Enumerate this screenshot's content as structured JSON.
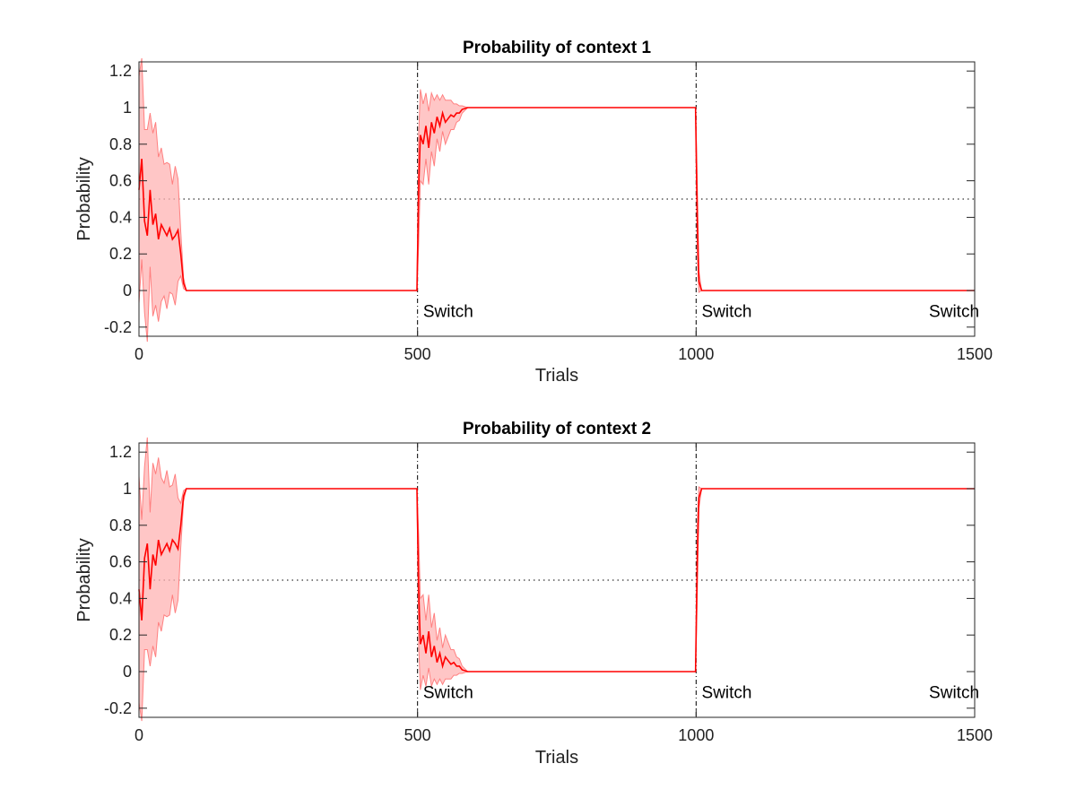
{
  "chart_data": [
    {
      "type": "line",
      "title": "Probability of context 1",
      "xlabel": "Trials",
      "ylabel": "Probability",
      "xlim": [
        0,
        1500
      ],
      "ylim": [
        -0.25,
        1.25
      ],
      "xticks": [
        "0",
        "500",
        "1000",
        "1500"
      ],
      "yticks": [
        "-0.2",
        "0",
        "0.2",
        "0.4",
        "0.6",
        "0.8",
        "1",
        "1.2"
      ],
      "grid": false,
      "reference_line_y": 0.5,
      "switch_x": [
        500,
        1000
      ],
      "annotations": [
        {
          "text": "Switch",
          "x": 510,
          "y": -0.11
        },
        {
          "text": "Switch",
          "x": 1010,
          "y": -0.11
        },
        {
          "text": "Switch",
          "x": 1418,
          "y": -0.11
        }
      ],
      "mean_color": "#ff0000",
      "band_color": "#ffb3b3",
      "series": [
        {
          "x": [
            0,
            5,
            10,
            15,
            20,
            25,
            30,
            35,
            40,
            45,
            50,
            55,
            60,
            65,
            70,
            75,
            80,
            85,
            100,
            200,
            300,
            400,
            499,
            502,
            505,
            510,
            515,
            520,
            525,
            530,
            535,
            540,
            545,
            550,
            555,
            560,
            565,
            570,
            575,
            580,
            590,
            600,
            700,
            800,
            900,
            999,
            1002,
            1005,
            1010,
            1020,
            1100,
            1200,
            1300,
            1400,
            1500
          ],
          "values": [
            0.55,
            0.72,
            0.38,
            0.3,
            0.55,
            0.36,
            0.42,
            0.28,
            0.36,
            0.33,
            0.3,
            0.34,
            0.28,
            0.3,
            0.33,
            0.2,
            0.04,
            0.0,
            0.0,
            0.0,
            0.0,
            0.0,
            0.0,
            0.55,
            0.85,
            0.8,
            0.9,
            0.78,
            0.92,
            0.86,
            0.95,
            0.9,
            0.97,
            0.92,
            0.94,
            0.96,
            0.95,
            0.97,
            0.97,
            0.99,
            1.0,
            1.0,
            1.0,
            1.0,
            1.0,
            1.0,
            0.4,
            0.05,
            0.0,
            0.0,
            0.0,
            0.0,
            0.0,
            0.0,
            0.0
          ],
          "band": [
            0.62,
            0.55,
            0.5,
            0.58,
            0.42,
            0.5,
            0.5,
            0.45,
            0.42,
            0.36,
            0.4,
            0.35,
            0.3,
            0.38,
            0.28,
            0.12,
            0.03,
            0.0,
            0.0,
            0.0,
            0.0,
            0.0,
            0.0,
            0.3,
            0.25,
            0.22,
            0.18,
            0.2,
            0.16,
            0.18,
            0.12,
            0.14,
            0.1,
            0.12,
            0.1,
            0.08,
            0.07,
            0.05,
            0.04,
            0.02,
            0.0,
            0.0,
            0.0,
            0.0,
            0.0,
            0.0,
            0.2,
            0.06,
            0.0,
            0.0,
            0.0,
            0.0,
            0.0,
            0.0,
            0.0
          ]
        }
      ]
    },
    {
      "type": "line",
      "title": "Probability of context 2",
      "xlabel": "Trials",
      "ylabel": "Probability",
      "xlim": [
        0,
        1500
      ],
      "ylim": [
        -0.25,
        1.25
      ],
      "xticks": [
        "0",
        "500",
        "1000",
        "1500"
      ],
      "yticks": [
        "-0.2",
        "0",
        "0.2",
        "0.4",
        "0.6",
        "0.8",
        "1",
        "1.2"
      ],
      "grid": false,
      "reference_line_y": 0.5,
      "switch_x": [
        500,
        1000
      ],
      "annotations": [
        {
          "text": "Switch",
          "x": 510,
          "y": -0.11
        },
        {
          "text": "Switch",
          "x": 1010,
          "y": -0.11
        },
        {
          "text": "Switch",
          "x": 1418,
          "y": -0.11
        }
      ],
      "mean_color": "#ff0000",
      "band_color": "#ffb3b3",
      "series": [
        {
          "x": [
            0,
            5,
            10,
            15,
            20,
            25,
            30,
            35,
            40,
            45,
            50,
            55,
            60,
            65,
            70,
            75,
            80,
            85,
            100,
            200,
            300,
            400,
            499,
            502,
            505,
            510,
            515,
            520,
            525,
            530,
            535,
            540,
            545,
            550,
            555,
            560,
            565,
            570,
            575,
            580,
            590,
            600,
            700,
            800,
            900,
            999,
            1002,
            1005,
            1010,
            1020,
            1100,
            1200,
            1300,
            1400,
            1500
          ],
          "values": [
            0.45,
            0.28,
            0.62,
            0.7,
            0.45,
            0.64,
            0.58,
            0.72,
            0.64,
            0.67,
            0.7,
            0.66,
            0.72,
            0.7,
            0.67,
            0.8,
            0.96,
            1.0,
            1.0,
            1.0,
            1.0,
            1.0,
            1.0,
            0.45,
            0.15,
            0.2,
            0.1,
            0.22,
            0.08,
            0.14,
            0.05,
            0.1,
            0.03,
            0.08,
            0.06,
            0.04,
            0.05,
            0.03,
            0.03,
            0.01,
            0.0,
            0.0,
            0.0,
            0.0,
            0.0,
            0.0,
            0.6,
            0.95,
            1.0,
            1.0,
            1.0,
            1.0,
            1.0,
            1.0,
            1.0
          ],
          "band": [
            0.62,
            0.55,
            0.5,
            0.58,
            0.42,
            0.5,
            0.5,
            0.45,
            0.42,
            0.36,
            0.4,
            0.35,
            0.3,
            0.38,
            0.28,
            0.12,
            0.03,
            0.0,
            0.0,
            0.0,
            0.0,
            0.0,
            0.0,
            0.3,
            0.25,
            0.22,
            0.18,
            0.2,
            0.16,
            0.18,
            0.12,
            0.14,
            0.1,
            0.12,
            0.1,
            0.08,
            0.07,
            0.05,
            0.04,
            0.02,
            0.0,
            0.0,
            0.0,
            0.0,
            0.0,
            0.0,
            0.2,
            0.06,
            0.0,
            0.0,
            0.0,
            0.0,
            0.0,
            0.0,
            0.0
          ]
        }
      ]
    }
  ]
}
